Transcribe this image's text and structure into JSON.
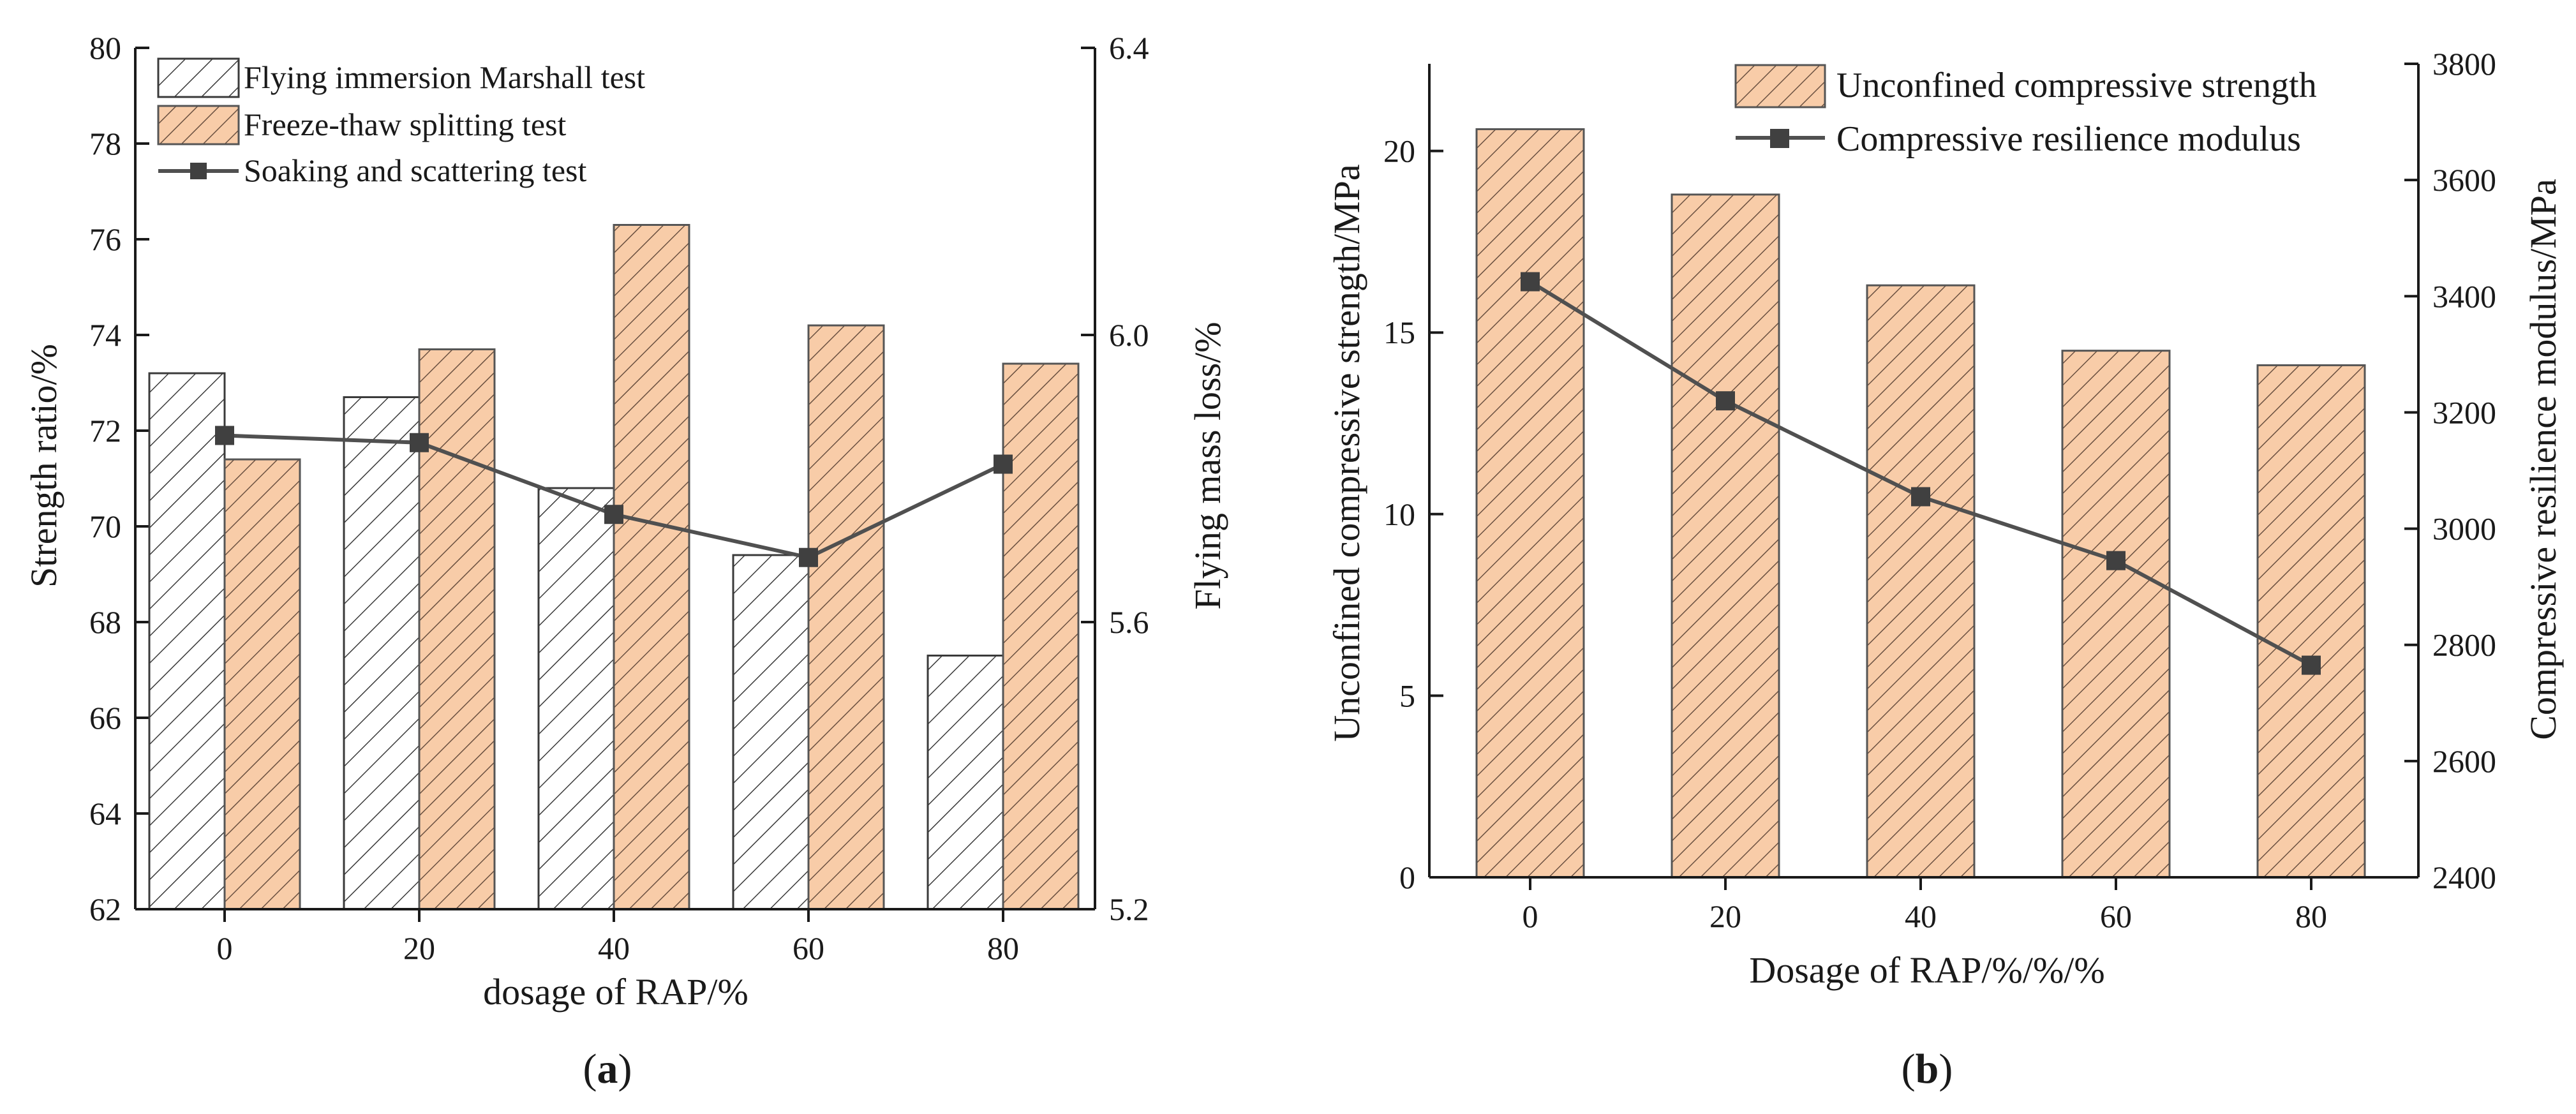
{
  "chart_data": [
    {
      "type": "bar",
      "panel_label_open": "(",
      "panel_label_letter": "a",
      "panel_label_close": ")",
      "categories": [
        "0",
        "20",
        "40",
        "60",
        "80"
      ],
      "series": [
        {
          "name": "Flying immersion Marshall test",
          "axis": "left",
          "kind": "bar",
          "style": "hatch-white",
          "values": [
            73.2,
            72.7,
            70.8,
            69.4,
            67.3
          ]
        },
        {
          "name": "Freeze-thaw splitting test",
          "axis": "left",
          "kind": "bar",
          "style": "hatch-orange",
          "values": [
            71.4,
            73.7,
            76.3,
            74.2,
            73.4
          ]
        },
        {
          "name": "Soaking and scattering test",
          "axis": "right",
          "kind": "line",
          "style": "line-square",
          "values": [
            5.86,
            5.85,
            5.75,
            5.69,
            5.82
          ]
        }
      ],
      "xlabel": "dosage of RAP/%",
      "ylabel": "Strength ratio/%",
      "y2label": "Flying mass loss/%",
      "ylim": [
        62,
        80
      ],
      "yticks": [
        62,
        64,
        66,
        68,
        70,
        72,
        74,
        76,
        78,
        80
      ],
      "y2lim": [
        5.2,
        6.4
      ],
      "y2ticks": [
        "5.2",
        "5.6",
        "6.0",
        "6.4"
      ],
      "legend_position": "top-left",
      "grid": false
    },
    {
      "type": "bar",
      "panel_label_open": "(",
      "panel_label_letter": "b",
      "panel_label_close": ")",
      "categories": [
        "0",
        "20",
        "40",
        "60",
        "80"
      ],
      "series": [
        {
          "name": "Unconfined compressive strength",
          "axis": "left",
          "kind": "bar",
          "style": "hatch-orange",
          "values": [
            20.6,
            18.8,
            16.3,
            14.5,
            14.1
          ]
        },
        {
          "name": "Compressive resilience modulus",
          "axis": "right",
          "kind": "line",
          "style": "line-square",
          "values": [
            3425,
            3220,
            3055,
            2945,
            2765
          ]
        }
      ],
      "xlabel": "Dosage of RAP/%/%/%",
      "ylabel": "Unconfined compressive strength/MPa",
      "y2label": "Compressive resilience modulus/MPa",
      "ylim": [
        0,
        22.4
      ],
      "yticks": [
        0,
        5,
        10,
        15,
        20
      ],
      "y2lim": [
        2400,
        3800
      ],
      "y2ticks": [
        2400,
        2600,
        2800,
        3000,
        3200,
        3400,
        3600,
        3800
      ],
      "legend_position": "top-right",
      "grid": false
    }
  ],
  "colors": {
    "orange_fill": "#f8cca8",
    "hatch_stroke": "#555555",
    "axis": "#1a1a1a",
    "line": "#505050",
    "marker": "#404040"
  }
}
